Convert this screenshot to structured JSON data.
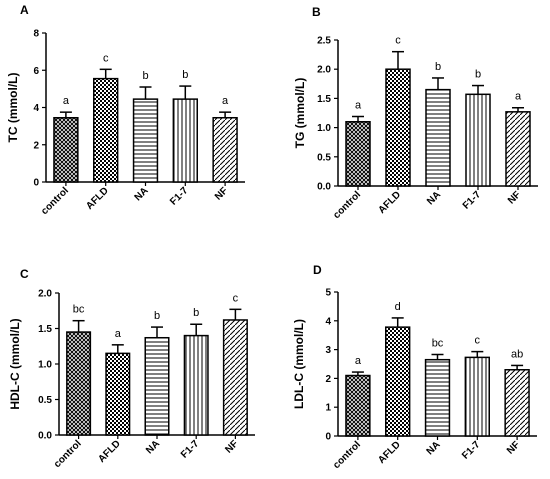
{
  "chart_data": [
    {
      "panel": "A",
      "type": "bar",
      "ylabel": "TC (mmol/L)",
      "ylim": [
        0,
        8
      ],
      "yticks": [
        "0",
        "2",
        "4",
        "6",
        "8"
      ],
      "categories": [
        "control",
        "AFLD",
        "NA",
        "F1-7",
        "NF"
      ],
      "values": [
        3.45,
        5.55,
        4.45,
        4.45,
        3.45
      ],
      "errors": [
        0.3,
        0.5,
        0.65,
        0.7,
        0.3
      ],
      "sig_letters": [
        "a",
        "c",
        "b",
        "b",
        "a"
      ],
      "patterns": [
        "cross",
        "checker",
        "hlines",
        "vlines",
        "diag"
      ]
    },
    {
      "panel": "B",
      "type": "bar",
      "ylabel": "TG (mmol/L)",
      "ylim": [
        0,
        2.5
      ],
      "yticks": [
        "0.0",
        "0.5",
        "1.0",
        "1.5",
        "2.0",
        "2.5"
      ],
      "categories": [
        "control",
        "AFLD",
        "NA",
        "F1-7",
        "NF"
      ],
      "values": [
        1.1,
        2.0,
        1.65,
        1.57,
        1.27
      ],
      "errors": [
        0.09,
        0.3,
        0.2,
        0.15,
        0.07
      ],
      "sig_letters": [
        "a",
        "c",
        "b",
        "b",
        "a"
      ],
      "patterns": [
        "cross",
        "checker",
        "hlines",
        "vlines",
        "diag"
      ]
    },
    {
      "panel": "C",
      "type": "bar",
      "ylabel": "HDL-C (mmol/L)",
      "ylim": [
        0,
        2.0
      ],
      "yticks": [
        "0.0",
        "0.5",
        "1.0",
        "1.5",
        "2.0"
      ],
      "categories": [
        "control",
        "AFLD",
        "NA",
        "F1-7",
        "NF"
      ],
      "values": [
        1.45,
        1.15,
        1.37,
        1.4,
        1.62
      ],
      "errors": [
        0.16,
        0.12,
        0.15,
        0.16,
        0.15
      ],
      "sig_letters": [
        "bc",
        "a",
        "b",
        "b",
        "c"
      ],
      "patterns": [
        "cross",
        "checker",
        "hlines",
        "vlines",
        "diag"
      ]
    },
    {
      "panel": "D",
      "type": "bar",
      "ylabel": "LDL-C (mmol/L)",
      "ylim": [
        0,
        5
      ],
      "yticks": [
        "0",
        "1",
        "2",
        "3",
        "4",
        "5"
      ],
      "categories": [
        "control",
        "AFLD",
        "NA",
        "F1-7",
        "NF"
      ],
      "values": [
        2.1,
        3.78,
        2.65,
        2.73,
        2.3
      ],
      "errors": [
        0.12,
        0.32,
        0.18,
        0.2,
        0.15
      ],
      "sig_letters": [
        "a",
        "d",
        "bc",
        "c",
        "ab"
      ],
      "patterns": [
        "cross",
        "checker",
        "hlines",
        "vlines",
        "diag"
      ]
    }
  ]
}
